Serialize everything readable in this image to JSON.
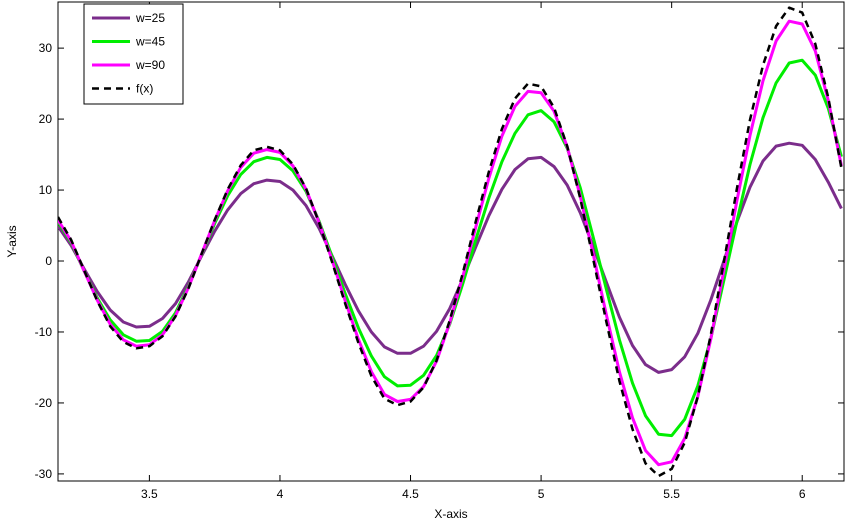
{
  "chart_data": {
    "type": "line",
    "title": "",
    "xlabel": "X-axis",
    "ylabel": "Y-axis",
    "xlim": [
      3.15,
      6.16
    ],
    "ylim": [
      -31,
      36.5
    ],
    "xticks": [
      3.5,
      4,
      4.5,
      5,
      5.5,
      6
    ],
    "xtick_labels": [
      "3.5",
      "4",
      "4.5",
      "5",
      "5.5",
      "6"
    ],
    "yticks": [
      -30,
      -20,
      -10,
      0,
      10,
      20,
      30
    ],
    "ytick_labels": [
      "-30",
      "-20",
      "-10",
      "0",
      "10",
      "20",
      "30"
    ],
    "grid": false,
    "legend_position": "top-left",
    "series": [
      {
        "name": "w=25",
        "color": "#7B2D8B",
        "dash": "solid",
        "x": [
          3.15,
          3.2,
          3.25,
          3.3,
          3.35,
          3.4,
          3.45,
          3.5,
          3.55,
          3.6,
          3.65,
          3.7,
          3.75,
          3.8,
          3.85,
          3.9,
          3.95,
          4.0,
          4.05,
          4.1,
          4.15,
          4.2,
          4.25,
          4.3,
          4.35,
          4.4,
          4.45,
          4.5,
          4.55,
          4.6,
          4.65,
          4.7,
          4.75,
          4.8,
          4.85,
          4.9,
          4.95,
          5.0,
          5.05,
          5.1,
          5.15,
          5.2,
          5.25,
          5.3,
          5.35,
          5.4,
          5.45,
          5.5,
          5.55,
          5.6,
          5.65,
          5.7,
          5.75,
          5.8,
          5.85,
          5.9,
          5.95,
          6.0,
          6.05,
          6.1,
          6.15
        ],
        "y": [
          4.9,
          2.2,
          -1.1,
          -4.3,
          -6.9,
          -8.6,
          -9.3,
          -9.2,
          -8.1,
          -6.0,
          -2.9,
          0.7,
          4.2,
          7.2,
          9.5,
          10.9,
          11.4,
          11.2,
          10.0,
          7.8,
          4.6,
          0.7,
          -3.3,
          -7.0,
          -10.0,
          -12.1,
          -13.0,
          -13.0,
          -12.0,
          -9.9,
          -6.7,
          -2.5,
          2.0,
          6.4,
          10.1,
          12.9,
          14.4,
          14.6,
          13.3,
          10.7,
          6.8,
          2.0,
          -3.0,
          -7.9,
          -11.9,
          -14.6,
          -15.7,
          -15.3,
          -13.5,
          -10.2,
          -5.5,
          0.0,
          5.5,
          10.4,
          14.1,
          16.2,
          16.6,
          16.3,
          14.3,
          11.1,
          7.4
        ]
      },
      {
        "name": "w=45",
        "color": "#00EE00",
        "dash": "solid",
        "x": [
          3.15,
          3.2,
          3.25,
          3.3,
          3.35,
          3.4,
          3.45,
          3.5,
          3.55,
          3.6,
          3.65,
          3.7,
          3.75,
          3.8,
          3.85,
          3.9,
          3.95,
          4.0,
          4.05,
          4.1,
          4.15,
          4.2,
          4.25,
          4.3,
          4.35,
          4.4,
          4.45,
          4.5,
          4.55,
          4.6,
          4.65,
          4.7,
          4.75,
          4.8,
          4.85,
          4.9,
          4.95,
          5.0,
          5.05,
          5.1,
          5.15,
          5.2,
          5.25,
          5.3,
          5.35,
          5.4,
          5.45,
          5.5,
          5.55,
          5.6,
          5.65,
          5.7,
          5.75,
          5.8,
          5.85,
          5.9,
          5.95,
          6.0,
          6.05,
          6.1,
          6.15
        ],
        "y": [
          5.5,
          2.6,
          -1.4,
          -5.2,
          -8.3,
          -10.4,
          -11.3,
          -11.2,
          -9.9,
          -7.3,
          -3.5,
          0.9,
          5.3,
          9.2,
          12.2,
          14.0,
          14.6,
          14.3,
          12.7,
          9.8,
          5.6,
          0.6,
          -4.6,
          -9.4,
          -13.4,
          -16.3,
          -17.6,
          -17.5,
          -16.1,
          -13.3,
          -8.9,
          -3.2,
          3.0,
          8.9,
          14.0,
          18.0,
          20.6,
          21.2,
          19.6,
          15.9,
          10.3,
          3.3,
          -4.0,
          -11.1,
          -17.2,
          -21.8,
          -24.4,
          -24.6,
          -22.3,
          -17.6,
          -10.9,
          -2.7,
          5.6,
          13.6,
          20.2,
          25.1,
          27.9,
          28.3,
          26.2,
          21.5,
          14.7
        ]
      },
      {
        "name": "w=90",
        "color": "#FF00FF",
        "dash": "solid",
        "x": [
          3.15,
          3.2,
          3.25,
          3.3,
          3.35,
          3.4,
          3.45,
          3.5,
          3.55,
          3.6,
          3.65,
          3.7,
          3.75,
          3.8,
          3.85,
          3.9,
          3.95,
          4.0,
          4.05,
          4.1,
          4.15,
          4.2,
          4.25,
          4.3,
          4.35,
          4.4,
          4.45,
          4.5,
          4.55,
          4.6,
          4.65,
          4.7,
          4.75,
          4.8,
          4.85,
          4.9,
          4.95,
          5.0,
          5.05,
          5.1,
          5.15,
          5.2,
          5.25,
          5.3,
          5.35,
          5.4,
          5.45,
          5.5,
          5.55,
          5.6,
          5.65,
          5.7,
          5.75,
          5.8,
          5.85,
          5.9,
          5.95,
          6.0,
          6.05,
          6.1,
          6.15
        ],
        "y": [
          5.8,
          2.8,
          -1.4,
          -5.5,
          -8.9,
          -11.1,
          -12.0,
          -11.8,
          -10.4,
          -7.7,
          -3.7,
          1.0,
          5.7,
          9.9,
          13.2,
          15.2,
          15.7,
          15.3,
          13.4,
          10.1,
          5.4,
          0.1,
          -5.6,
          -11.0,
          -15.6,
          -18.8,
          -19.8,
          -19.5,
          -17.7,
          -14.1,
          -8.7,
          -2.2,
          4.8,
          11.7,
          17.6,
          21.8,
          23.9,
          23.7,
          21.1,
          16.1,
          9.1,
          0.9,
          -7.6,
          -15.6,
          -22.1,
          -26.7,
          -28.7,
          -28.3,
          -25.0,
          -19.1,
          -11.0,
          -1.3,
          8.5,
          17.7,
          25.4,
          31.0,
          33.8,
          33.4,
          29.6,
          22.6,
          13.4
        ]
      },
      {
        "name": "f(x)",
        "color": "#000000",
        "dash": "dashed",
        "x": [
          3.15,
          3.2,
          3.25,
          3.3,
          3.35,
          3.4,
          3.45,
          3.5,
          3.55,
          3.6,
          3.65,
          3.7,
          3.75,
          3.8,
          3.85,
          3.9,
          3.95,
          4.0,
          4.05,
          4.1,
          4.15,
          4.2,
          4.25,
          4.3,
          4.35,
          4.4,
          4.45,
          4.5,
          4.55,
          4.6,
          4.65,
          4.7,
          4.75,
          4.8,
          4.85,
          4.9,
          4.95,
          5.0,
          5.05,
          5.1,
          5.15,
          5.2,
          5.25,
          5.3,
          5.35,
          5.4,
          5.45,
          5.5,
          5.55,
          5.6,
          5.65,
          5.7,
          5.75,
          5.8,
          5.85,
          5.9,
          5.95,
          6.0,
          6.05,
          6.1,
          6.15
        ],
        "y": [
          6.2,
          3.0,
          -1.3,
          -5.6,
          -9.2,
          -11.4,
          -12.3,
          -12.0,
          -10.6,
          -7.8,
          -3.8,
          1.0,
          5.8,
          10.1,
          13.5,
          15.6,
          16.1,
          15.6,
          13.6,
          10.2,
          5.4,
          -0.2,
          -6.0,
          -11.5,
          -16.2,
          -19.4,
          -20.3,
          -19.8,
          -17.8,
          -14.0,
          -8.4,
          -1.7,
          5.6,
          12.6,
          18.6,
          22.9,
          25.0,
          24.6,
          21.6,
          16.2,
          8.8,
          0.2,
          -8.6,
          -16.9,
          -23.7,
          -28.5,
          -30.3,
          -29.3,
          -25.6,
          -19.1,
          -10.4,
          -0.1,
          10.2,
          19.9,
          27.6,
          33.1,
          35.7,
          35.0,
          30.6,
          23.0,
          13.1
        ]
      }
    ]
  }
}
